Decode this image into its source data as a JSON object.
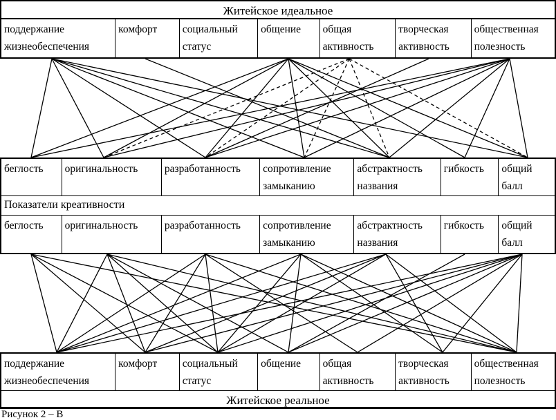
{
  "diagram": {
    "top_block": {
      "title": "Житейское идеальное",
      "cells": [
        "поддержание жизнеобеспечения",
        "комфорт",
        "социальный статус",
        "общение",
        "общая активность",
        "творческая активность",
        "общественная полезность"
      ]
    },
    "creativity_block": {
      "row_label": "Показатели креативности",
      "cells_upper": [
        "беглость",
        "оригинальность",
        "разработанность",
        "сопротивление замыканию",
        "абстрактность названия",
        "гибкость",
        "общий балл"
      ],
      "cells_lower": [
        "беглость",
        "оригинальность",
        "разработанность",
        "сопротивление замыканию",
        "абстрактность названия",
        "гибкость",
        "общий балл"
      ]
    },
    "bottom_block": {
      "title": "Житейское реальное",
      "cells": [
        "поддержание жизнеобеспечения",
        "комфорт",
        "социальный статус",
        "общение",
        "общая активность",
        "творческая активность",
        "общественная полезность"
      ]
    },
    "caption_fragment": "Рисунок 2 – В",
    "colors": {
      "ink": "#000000",
      "paper": "#ffffff"
    }
  },
  "networks": {
    "upper": {
      "description": "correlation lines between ideal everyday values and creativity indicators",
      "top_anchor_labels": [
        "поддержание жизнеобеспечения",
        "комфорт",
        "общение",
        "общая активность",
        "творческая активность",
        "общественная полезность"
      ],
      "top_anchor_x": [
        75,
        210,
        417,
        505,
        620,
        737
      ],
      "bottom_anchor_labels": [
        "беглость",
        "оригинальность",
        "разработанность",
        "сопротивление замыканию",
        "абстрактность названия",
        "гибкость",
        "общий балл"
      ],
      "bottom_anchor_x": [
        45,
        150,
        297,
        440,
        563,
        672,
        763
      ],
      "edges": [
        {
          "from": 0,
          "to": 0,
          "style": "solid"
        },
        {
          "from": 0,
          "to": 1,
          "style": "solid"
        },
        {
          "from": 0,
          "to": 2,
          "style": "solid"
        },
        {
          "from": 0,
          "to": 3,
          "style": "solid"
        },
        {
          "from": 0,
          "to": 4,
          "style": "solid"
        },
        {
          "from": 0,
          "to": 6,
          "style": "solid"
        },
        {
          "from": 1,
          "to": 4,
          "style": "solid"
        },
        {
          "from": 2,
          "to": 0,
          "style": "solid"
        },
        {
          "from": 2,
          "to": 1,
          "style": "solid"
        },
        {
          "from": 2,
          "to": 2,
          "style": "solid"
        },
        {
          "from": 2,
          "to": 3,
          "style": "solid"
        },
        {
          "from": 2,
          "to": 4,
          "style": "solid"
        },
        {
          "from": 2,
          "to": 5,
          "style": "solid"
        },
        {
          "from": 2,
          "to": 6,
          "style": "solid"
        },
        {
          "from": 3,
          "to": 1,
          "style": "dashed"
        },
        {
          "from": 3,
          "to": 2,
          "style": "dashed"
        },
        {
          "from": 3,
          "to": 3,
          "style": "dashed"
        },
        {
          "from": 3,
          "to": 4,
          "style": "dashed"
        },
        {
          "from": 3,
          "to": 6,
          "style": "dashed"
        },
        {
          "from": 4,
          "to": 2,
          "style": "solid"
        },
        {
          "from": 5,
          "to": 0,
          "style": "solid"
        },
        {
          "from": 5,
          "to": 1,
          "style": "solid"
        },
        {
          "from": 5,
          "to": 2,
          "style": "solid"
        },
        {
          "from": 5,
          "to": 3,
          "style": "solid"
        },
        {
          "from": 5,
          "to": 4,
          "style": "solid"
        },
        {
          "from": 5,
          "to": 5,
          "style": "solid"
        },
        {
          "from": 5,
          "to": 6,
          "style": "solid"
        }
      ]
    },
    "lower": {
      "description": "correlation lines between creativity indicators and real everyday values",
      "top_anchor_labels": [
        "беглость",
        "оригинальность",
        "разработанность",
        "сопротивление замыканию",
        "абстрактность названия",
        "гибкость",
        "общий балл"
      ],
      "top_anchor_x": [
        45,
        155,
        297,
        435,
        558,
        672,
        755
      ],
      "bottom_anchor_labels": [
        "поддержание жизнеобеспечения",
        "комфорт",
        "социальный статус",
        "общение",
        "общая активность",
        "творческая активность",
        "общественная полезность"
      ],
      "bottom_anchor_x": [
        82,
        210,
        315,
        417,
        517,
        640,
        747
      ],
      "edges": [
        {
          "from": 0,
          "to": 0,
          "style": "solid"
        },
        {
          "from": 0,
          "to": 1,
          "style": "solid"
        },
        {
          "from": 0,
          "to": 2,
          "style": "solid"
        },
        {
          "from": 0,
          "to": 6,
          "style": "solid"
        },
        {
          "from": 1,
          "to": 0,
          "style": "solid"
        },
        {
          "from": 1,
          "to": 1,
          "style": "solid"
        },
        {
          "from": 1,
          "to": 2,
          "style": "solid"
        },
        {
          "from": 1,
          "to": 3,
          "style": "solid"
        },
        {
          "from": 1,
          "to": 6,
          "style": "solid"
        },
        {
          "from": 2,
          "to": 0,
          "style": "solid"
        },
        {
          "from": 2,
          "to": 1,
          "style": "solid"
        },
        {
          "from": 2,
          "to": 2,
          "style": "solid"
        },
        {
          "from": 2,
          "to": 4,
          "style": "solid"
        },
        {
          "from": 2,
          "to": 6,
          "style": "solid"
        },
        {
          "from": 3,
          "to": 0,
          "style": "solid"
        },
        {
          "from": 3,
          "to": 2,
          "style": "solid"
        },
        {
          "from": 3,
          "to": 3,
          "style": "solid"
        },
        {
          "from": 3,
          "to": 5,
          "style": "solid"
        },
        {
          "from": 3,
          "to": 6,
          "style": "solid"
        },
        {
          "from": 4,
          "to": 0,
          "style": "solid"
        },
        {
          "from": 4,
          "to": 1,
          "style": "solid"
        },
        {
          "from": 4,
          "to": 2,
          "style": "solid"
        },
        {
          "from": 4,
          "to": 5,
          "style": "solid"
        },
        {
          "from": 4,
          "to": 6,
          "style": "solid"
        },
        {
          "from": 5,
          "to": 3,
          "style": "solid"
        },
        {
          "from": 6,
          "to": 0,
          "style": "solid"
        },
        {
          "from": 6,
          "to": 1,
          "style": "solid"
        },
        {
          "from": 6,
          "to": 2,
          "style": "solid"
        },
        {
          "from": 6,
          "to": 3,
          "style": "solid"
        },
        {
          "from": 6,
          "to": 4,
          "style": "solid"
        },
        {
          "from": 6,
          "to": 5,
          "style": "solid"
        },
        {
          "from": 6,
          "to": 6,
          "style": "solid"
        }
      ]
    }
  }
}
